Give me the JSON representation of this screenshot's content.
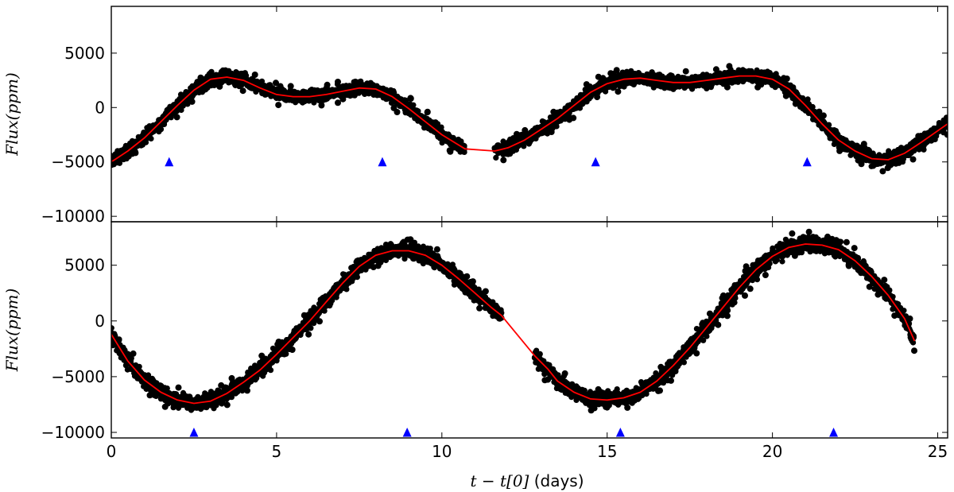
{
  "chart_data": [
    {
      "type": "scatter",
      "panel": "top",
      "xlabel_parts": {
        "math": "t − t[0]",
        "units": " (days)"
      },
      "ylabel_parts": {
        "name": "Flux",
        "units": "(ppm)"
      },
      "xlim": [
        0,
        25.3
      ],
      "ylim": [
        -10500,
        9300
      ],
      "xticks": [
        0,
        5,
        10,
        15,
        20,
        25
      ],
      "yticks": [
        -10000,
        -5000,
        0,
        5000
      ],
      "ytick_labels": [
        "−10000",
        "−5000",
        "0",
        "5000"
      ],
      "data_gap": [
        10.7,
        11.6
      ],
      "series": [
        {
          "name": "observed flux",
          "color": "#000000",
          "scatter_half_width": 650,
          "x": [
            0,
            0.5,
            1,
            1.5,
            2,
            2.5,
            3,
            3.5,
            4,
            4.5,
            5,
            5.5,
            6,
            6.5,
            7,
            7.5,
            8,
            8.5,
            9,
            9.5,
            10,
            10.7,
            11.6,
            12,
            12.5,
            13,
            13.5,
            14,
            14.5,
            15,
            15.5,
            16,
            16.5,
            17,
            17.5,
            18,
            18.5,
            19,
            19.5,
            20,
            20.5,
            21,
            21.5,
            22,
            22.5,
            23,
            23.5,
            24,
            24.5,
            25.3
          ],
          "y": [
            -5000,
            -4000,
            -2800,
            -1300,
            200,
            1600,
            2600,
            2800,
            2500,
            1800,
            1200,
            1000,
            1000,
            1200,
            1500,
            1800,
            1700,
            1000,
            -100,
            -1300,
            -2500,
            -3800,
            -4000,
            -3700,
            -3000,
            -2000,
            -1000,
            200,
            1400,
            2200,
            2600,
            2700,
            2500,
            2300,
            2300,
            2500,
            2700,
            2900,
            2900,
            2600,
            1700,
            200,
            -1500,
            -3000,
            -4000,
            -4700,
            -4800,
            -4200,
            -3200,
            -1500
          ]
        },
        {
          "name": "fit",
          "color": "#ff0000",
          "x": [
            0,
            0.5,
            1,
            1.5,
            2,
            2.5,
            3,
            3.5,
            4,
            4.5,
            5,
            5.5,
            6,
            6.5,
            7,
            7.5,
            8,
            8.5,
            9,
            9.5,
            10,
            10.7,
            11.6,
            12,
            12.5,
            13,
            13.5,
            14,
            14.5,
            15,
            15.5,
            16,
            16.5,
            17,
            17.5,
            18,
            18.5,
            19,
            19.5,
            20,
            20.5,
            21,
            21.5,
            22,
            22.5,
            23,
            23.5,
            24,
            24.5,
            25.3
          ],
          "y": [
            -5000,
            -4000,
            -2800,
            -1300,
            200,
            1600,
            2600,
            2800,
            2500,
            1800,
            1200,
            1000,
            1000,
            1200,
            1500,
            1800,
            1700,
            1000,
            -100,
            -1300,
            -2500,
            -3800,
            -4000,
            -3700,
            -3000,
            -2000,
            -1000,
            200,
            1400,
            2200,
            2600,
            2700,
            2500,
            2300,
            2300,
            2500,
            2700,
            2900,
            2900,
            2600,
            1700,
            200,
            -1500,
            -3000,
            -4000,
            -4700,
            -4800,
            -4200,
            -3200,
            -1500
          ]
        }
      ],
      "markers": {
        "name": "marked times",
        "shape": "triangle",
        "color": "#0000ff",
        "x": [
          1.75,
          8.2,
          14.65,
          21.05
        ],
        "y": [
          -5000,
          -5000,
          -5000,
          -5000
        ]
      }
    },
    {
      "type": "scatter",
      "panel": "bottom",
      "xlabel_parts": {
        "math": "t − t[0]",
        "units": " (days)"
      },
      "ylabel_parts": {
        "name": "Flux",
        "units": "(ppm)"
      },
      "xlim": [
        0,
        25.3
      ],
      "ylim": [
        -10500,
        8900
      ],
      "xticks": [
        0,
        5,
        10,
        15,
        20,
        25
      ],
      "xtick_labels": [
        "0",
        "5",
        "10",
        "15",
        "20",
        "25"
      ],
      "yticks": [
        -10000,
        -5000,
        0,
        5000
      ],
      "ytick_labels": [
        "−10000",
        "−5000",
        "0",
        "5000"
      ],
      "data_gap": [
        11.8,
        12.8
      ],
      "series": [
        {
          "name": "observed flux",
          "color": "#000000",
          "scatter_half_width": 750,
          "x": [
            0,
            0.5,
            1,
            1.5,
            2,
            2.5,
            3,
            3.5,
            4,
            4.5,
            5,
            5.5,
            6,
            6.5,
            7,
            7.5,
            8,
            8.5,
            9,
            9.5,
            10,
            10.5,
            11,
            11.5,
            11.8,
            12.8,
            13.2,
            13.5,
            14,
            14.5,
            15,
            15.5,
            16,
            16.5,
            17,
            17.5,
            18,
            18.5,
            19,
            19.5,
            20,
            20.5,
            21,
            21.5,
            22,
            22.5,
            23,
            23.5,
            24,
            24.3
          ],
          "y": [
            -1200,
            -3600,
            -5300,
            -6400,
            -7100,
            -7400,
            -7200,
            -6500,
            -5500,
            -4400,
            -3000,
            -1500,
            0,
            1700,
            3400,
            4900,
            5900,
            6300,
            6300,
            5900,
            5000,
            3800,
            2500,
            1200,
            500,
            -3100,
            -4300,
            -5400,
            -6400,
            -7000,
            -7100,
            -6900,
            -6400,
            -5400,
            -4000,
            -2400,
            -600,
            1200,
            3000,
            4600,
            5800,
            6600,
            6900,
            6800,
            6400,
            5400,
            4000,
            2300,
            200,
            -1800
          ]
        },
        {
          "name": "fit",
          "color": "#ff0000",
          "x": [
            0,
            0.5,
            1,
            1.5,
            2,
            2.5,
            3,
            3.5,
            4,
            4.5,
            5,
            5.5,
            6,
            6.5,
            7,
            7.5,
            8,
            8.5,
            9,
            9.5,
            10,
            10.5,
            11,
            11.5,
            11.8,
            12.8,
            13.2,
            13.5,
            14,
            14.5,
            15,
            15.5,
            16,
            16.5,
            17,
            17.5,
            18,
            18.5,
            19,
            19.5,
            20,
            20.5,
            21,
            21.5,
            22,
            22.5,
            23,
            23.5,
            24,
            24.3
          ],
          "y": [
            -1200,
            -3600,
            -5300,
            -6400,
            -7100,
            -7400,
            -7200,
            -6500,
            -5500,
            -4400,
            -3000,
            -1500,
            0,
            1700,
            3400,
            4900,
            5900,
            6300,
            6300,
            5900,
            5000,
            3800,
            2500,
            1200,
            500,
            -3100,
            -4300,
            -5400,
            -6400,
            -7000,
            -7100,
            -6900,
            -6400,
            -5400,
            -4000,
            -2400,
            -600,
            1200,
            3000,
            4600,
            5800,
            6600,
            6900,
            6800,
            6400,
            5400,
            4000,
            2300,
            200,
            -1800
          ]
        }
      ],
      "markers": {
        "name": "marked times",
        "shape": "triangle",
        "color": "#0000ff",
        "x": [
          2.5,
          8.95,
          15.4,
          21.85
        ],
        "y": [
          -10000,
          -10000,
          -10000,
          -10000
        ]
      }
    }
  ]
}
